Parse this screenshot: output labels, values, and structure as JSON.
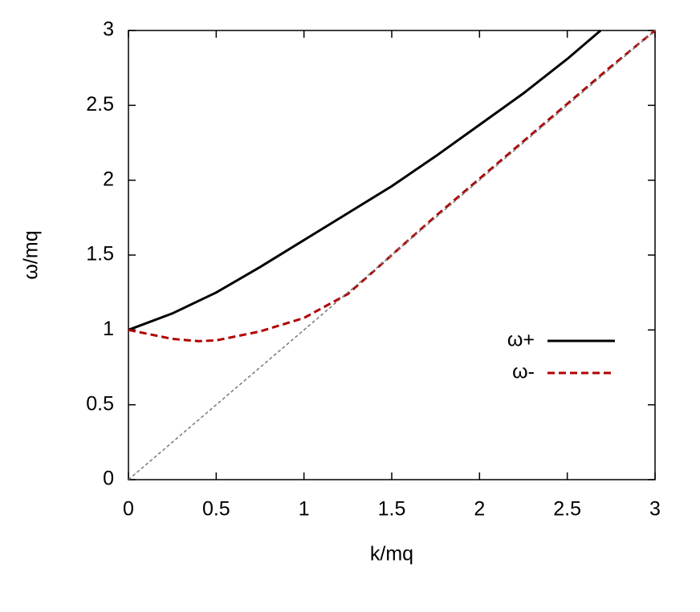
{
  "chart_data": {
    "type": "line",
    "xlabel": "k/mq",
    "ylabel": "ω/mq",
    "xlim": [
      0,
      3
    ],
    "ylim": [
      0,
      3
    ],
    "xticks": [
      0,
      0.5,
      1,
      1.5,
      2,
      2.5,
      3
    ],
    "yticks": [
      0,
      0.5,
      1,
      1.5,
      2,
      2.5,
      3
    ],
    "legend": "right",
    "series": [
      {
        "name": "ω+",
        "color": "#000000",
        "dash": false,
        "x": [
          0,
          0.25,
          0.5,
          0.75,
          1,
          1.25,
          1.5,
          1.75,
          2,
          2.25,
          2.5,
          2.69
        ],
        "values": [
          1,
          1.11,
          1.25,
          1.42,
          1.6,
          1.78,
          1.96,
          2.16,
          2.37,
          2.58,
          2.81,
          3
        ]
      },
      {
        "name": "ω-",
        "color": "#b00000",
        "dash": true,
        "x": [
          0,
          0.25,
          0.4,
          0.5,
          0.75,
          1,
          1.25,
          1.5,
          1.75,
          2,
          2.25,
          2.5,
          2.75,
          3
        ],
        "values": [
          1,
          0.94,
          0.925,
          0.93,
          0.99,
          1.08,
          1.24,
          1.5,
          1.76,
          2.01,
          2.26,
          2.51,
          2.76,
          3
        ]
      },
      {
        "color": "#777777",
        "dash": true,
        "x": [
          0,
          3
        ],
        "values": [
          0,
          3
        ]
      }
    ]
  }
}
